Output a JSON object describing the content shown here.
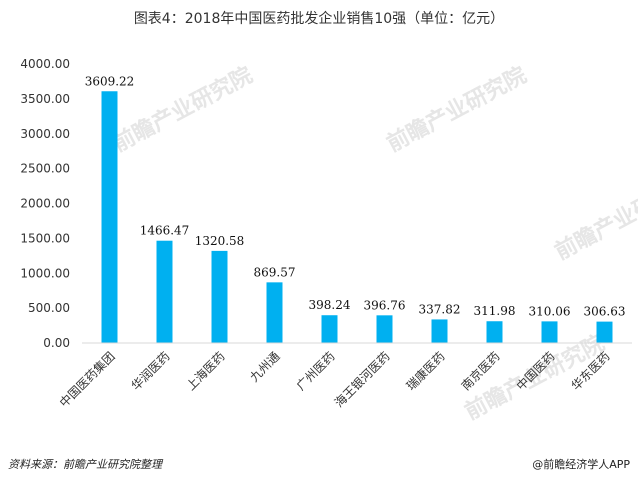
{
  "title": "图表4：2018年中国医药批发企业销售10强（单位：亿元）",
  "source": "资料来源：前瞻产业研究院整理",
  "credit": "@前瞻经济学人APP",
  "watermark": "前瞻产业研究院",
  "colors": {
    "bar": "#00B0F0",
    "axis": "#D9D9D9"
  },
  "chart_data": {
    "type": "bar",
    "title": "图表4：2018年中国医药批发企业销售10强（单位：亿元）",
    "categories": [
      "中国医药集团",
      "华润医药",
      "上海医药",
      "九州通",
      "广州医药",
      "海王银河医药",
      "瑞康医药",
      "南京医药",
      "中国医药",
      "华东医药"
    ],
    "values": [
      3609.22,
      1466.47,
      1320.58,
      869.57,
      398.24,
      396.76,
      337.82,
      311.98,
      310.06,
      306.63
    ],
    "data_labels": [
      "3609.22",
      "1466.47",
      "1320.58",
      "869.57",
      "398.24",
      "396.76",
      "337.82",
      "311.98",
      "310.06",
      "306.63"
    ],
    "ylim": [
      0,
      4000
    ],
    "yticks": [
      0,
      500,
      1000,
      1500,
      2000,
      2500,
      3000,
      3500,
      4000
    ],
    "ytick_labels": [
      "0.00",
      "500.00",
      "1000.00",
      "1500.00",
      "2000.00",
      "2500.00",
      "3000.00",
      "3500.00",
      "4000.00"
    ],
    "xlabel": "",
    "ylabel": "",
    "grid": false,
    "legend": "none"
  }
}
